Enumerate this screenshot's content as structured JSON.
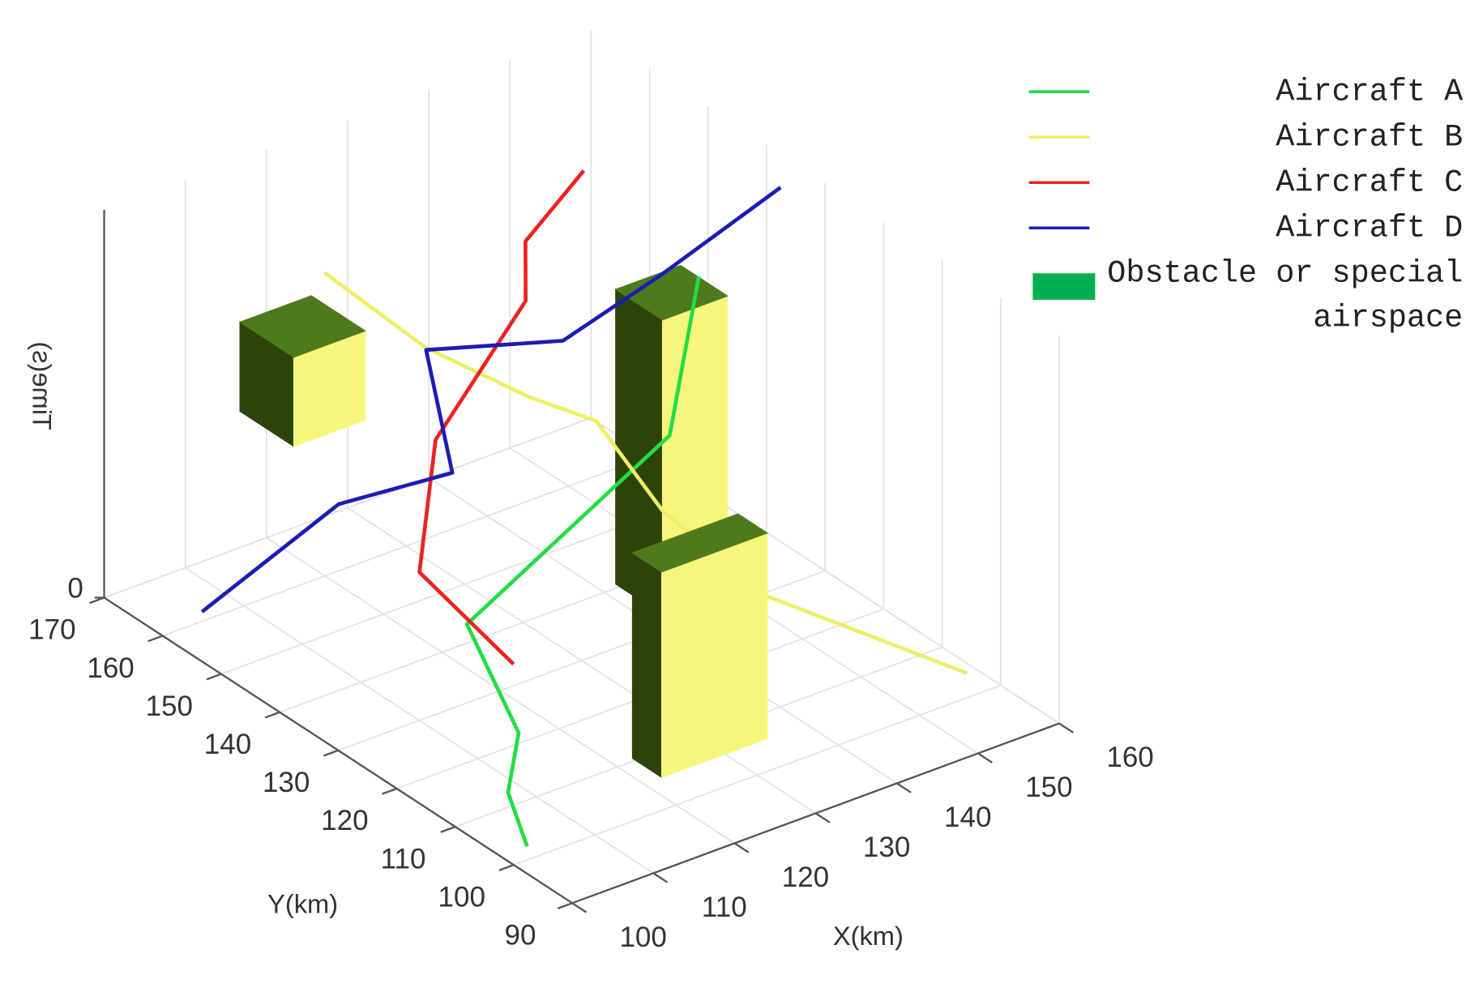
{
  "chart_data": {
    "type": "line3d",
    "xlabel": "X(km)",
    "ylabel": "Y(km)",
    "zlabel": "Time(s)",
    "xlim": [
      100,
      160
    ],
    "xticks": [
      100,
      110,
      120,
      130,
      140,
      150,
      160
    ],
    "ylim": [
      90,
      170
    ],
    "yticks": [
      90,
      100,
      110,
      120,
      130,
      140,
      150,
      160,
      170
    ],
    "zlim": [
      0,
      10
    ],
    "zticks": [
      0
    ],
    "grid": true,
    "legend": "upper right",
    "series": [
      {
        "name": "Aircraft A",
        "color": "#22dd44",
        "x": [
          103.3,
          105.5,
          110.7,
          116.0,
          140.7,
          145.8
        ],
        "y": [
          102.3,
          108.6,
          114.0,
          130.2,
          129.8,
          131.9
        ],
        "z": [
          0,
          0.6,
          1.2,
          2,
          5,
          8.5
        ]
      },
      {
        "name": "Aircraft B",
        "color": "#eeee66",
        "x": [
          158.8,
          145.3,
          140.4,
          139.0,
          134.3,
          127.4,
          123.8
        ],
        "y": [
          104.1,
          119.7,
          130.6,
          140.0,
          144.8,
          153.0,
          165.4
        ],
        "z": [
          0,
          1.5,
          3,
          4.5,
          5,
          6,
          7
        ]
      },
      {
        "name": "Aircraft C",
        "color": "#ee2222",
        "x": [
          124.2,
          123.2,
          131.1,
          140.9,
          143.4,
          149.5
        ],
        "y": [
          133.6,
          148.3,
          156.5,
          154.7,
          158.2,
          156.7
        ],
        "z": [
          0,
          1,
          3,
          6,
          7,
          8.5
        ]
      },
      {
        "name": "Aircraft D",
        "color": "#1c1cb4",
        "x": [
          106.0,
          120.4,
          126.1,
          129.5,
          136.7,
          147.8,
          159.7
        ],
        "y": [
          161.6,
          158.2,
          146.7,
          155.9,
          142.5,
          141.0,
          137.2
        ],
        "z": [
          0,
          2,
          3.5,
          5.5,
          6.5,
          7.5,
          9.2
        ]
      }
    ],
    "obstacle_name": "Obstacle or special airspace",
    "obstacle_color": "#00b050",
    "obstacle_face_colors": {
      "top": "#4e7a1e",
      "side": "#2c4408",
      "front": "#f6f67c"
    },
    "obstacles": [
      {
        "x": [
          116.8,
          125.6
        ],
        "y": [
          160.9,
          170.1
        ],
        "z": [
          3.5,
          5.8
        ]
      },
      {
        "x": [
          141.9,
          149.9
        ],
        "y": [
          132.7,
          140.7
        ],
        "z": [
          0,
          7.6
        ]
      },
      {
        "x": [
          122.2,
          135.2
        ],
        "y": [
          105.5,
          110.5
        ],
        "z": [
          0,
          5.3
        ]
      }
    ]
  }
}
